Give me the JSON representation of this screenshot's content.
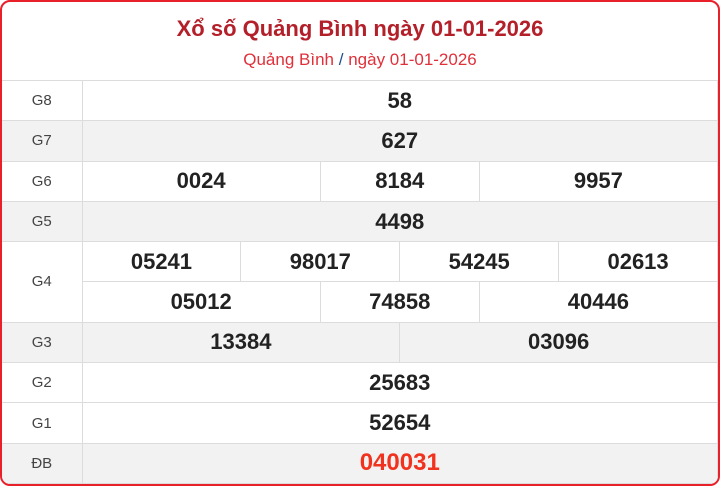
{
  "title": "Xổ số Quảng Bình ngày 01-01-2026",
  "breadcrumb": {
    "province": "Quảng Bình",
    "separator": "/",
    "date": "ngày 01-01-2026"
  },
  "prizes": [
    {
      "label": "G8",
      "numbers": [
        "58"
      ]
    },
    {
      "label": "G7",
      "numbers": [
        "627"
      ]
    },
    {
      "label": "G6",
      "numbers": [
        "0024",
        "8184",
        "9957"
      ]
    },
    {
      "label": "G5",
      "numbers": [
        "4498"
      ]
    },
    {
      "label": "G4",
      "numbers": [
        "05241",
        "98017",
        "54245",
        "02613",
        "05012",
        "74858",
        "40446"
      ]
    },
    {
      "label": "G3",
      "numbers": [
        "13384",
        "03096"
      ]
    },
    {
      "label": "G2",
      "numbers": [
        "25683"
      ]
    },
    {
      "label": "G1",
      "numbers": [
        "52654"
      ]
    },
    {
      "label": "ĐB",
      "numbers": [
        "040031"
      ]
    }
  ],
  "colors": {
    "border": "#e8202a",
    "title": "#b3202a",
    "special": "#f0321e"
  }
}
